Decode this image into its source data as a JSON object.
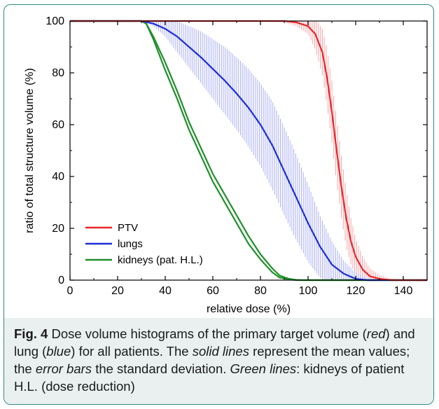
{
  "chart_data": {
    "type": "line",
    "xlabel": "relative dose (%)",
    "ylabel": "ratio of total structure volume (%)",
    "xlim": [
      0,
      150
    ],
    "ylim": [
      0,
      100
    ],
    "xticks": [
      0,
      20,
      40,
      60,
      80,
      100,
      120,
      140
    ],
    "yticks": [
      0,
      20,
      40,
      60,
      80,
      100
    ],
    "grid": false,
    "legend_position": "bottom-left",
    "series": [
      {
        "name": "PTV",
        "color": "#e8262b",
        "error_color": "#f6a3a6",
        "x": [
          0,
          30,
          70,
          90,
          95,
          100,
          103,
          106,
          108,
          110,
          112,
          114,
          116,
          118,
          120,
          123,
          126,
          130,
          135,
          150
        ],
        "y": [
          100,
          100,
          100,
          100,
          99.5,
          98,
          95,
          88,
          78,
          65,
          50,
          36,
          24,
          15,
          9,
          4,
          1.5,
          0.5,
          0,
          0
        ],
        "err": [
          0,
          0,
          0,
          0.5,
          1.5,
          3,
          6,
          9,
          11,
          12,
          12.5,
          12,
          11,
          9,
          7,
          5,
          3,
          1.5,
          0.5,
          0
        ]
      },
      {
        "name": "lungs",
        "color": "#1c2fd6",
        "error_color": "#a9aef3",
        "x": [
          0,
          30,
          35,
          40,
          45,
          50,
          55,
          60,
          65,
          70,
          75,
          80,
          85,
          90,
          95,
          100,
          105,
          110,
          115,
          120,
          125,
          130,
          140,
          150
        ],
        "y": [
          100,
          100,
          99,
          97,
          94,
          90,
          86,
          81.5,
          77,
          72,
          66.5,
          60,
          52,
          42,
          32,
          22,
          13,
          6,
          2.5,
          0.5,
          0,
          0,
          0,
          0
        ],
        "err": [
          0,
          0,
          1,
          3,
          6,
          8,
          10,
          11.5,
          13,
          14,
          15,
          16,
          17,
          17,
          16.5,
          15,
          12,
          9,
          5,
          2.5,
          1,
          0,
          0,
          0
        ]
      },
      {
        "name": "kidneys (pat. H.L.)",
        "color": "#1f8f2a",
        "x": [
          0,
          30,
          32,
          35,
          40,
          45,
          50,
          55,
          60,
          65,
          70,
          75,
          80,
          85,
          88,
          92,
          95,
          98,
          150
        ],
        "y": [
          100,
          100,
          99,
          93,
          81,
          70,
          58,
          48,
          38,
          30,
          22,
          14,
          8,
          3,
          1,
          0.3,
          0,
          0,
          0
        ],
        "y2": [
          100,
          100,
          99,
          94,
          84,
          73,
          61,
          51,
          41,
          33,
          25,
          17,
          10,
          4.5,
          1.8,
          0.5,
          0.1,
          0,
          0
        ]
      }
    ]
  },
  "caption": {
    "label": "Fig. 4",
    "segments": [
      {
        "text": " Dose volume histograms of the primary target volume (",
        "italic": false
      },
      {
        "text": "red",
        "italic": true
      },
      {
        "text": ") and lung (",
        "italic": false
      },
      {
        "text": "blue",
        "italic": true
      },
      {
        "text": ") for all patients. The ",
        "italic": false
      },
      {
        "text": "solid lines",
        "italic": true
      },
      {
        "text": " represent the mean values; the ",
        "italic": false
      },
      {
        "text": "error bars",
        "italic": true
      },
      {
        "text": " the standard deviation. ",
        "italic": false
      },
      {
        "text": "Green lines",
        "italic": true
      },
      {
        "text": ": kidneys of patient H.L. (dose reduction)",
        "italic": false
      }
    ]
  }
}
